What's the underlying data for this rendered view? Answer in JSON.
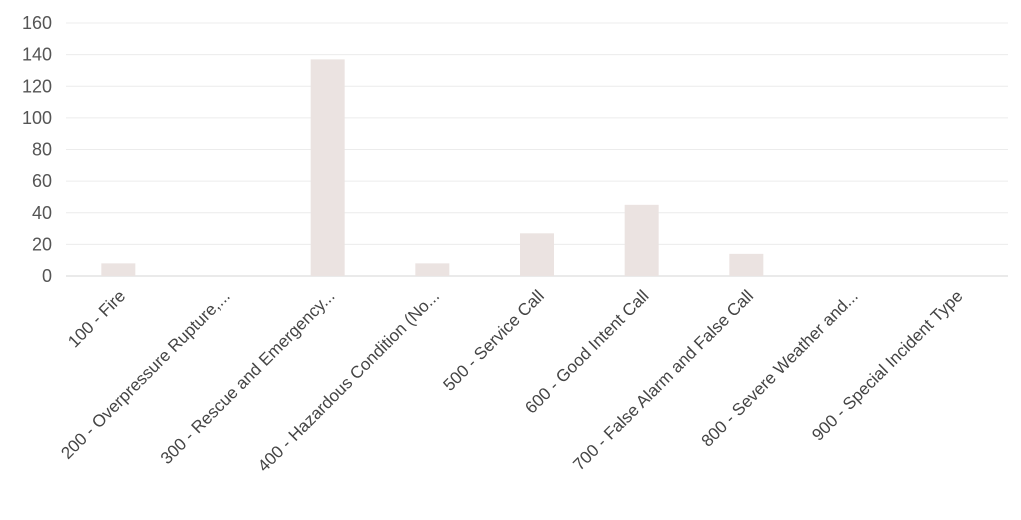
{
  "chart_data": {
    "type": "bar",
    "categories": [
      "100 - Fire",
      "200 - Overpressure Rupture,...",
      "300 - Rescue and Emergency...",
      "400 - Hazardous Condition (No...",
      "500 - Service Call",
      "600 - Good Intent Call",
      "700 - False Alarm and False Call",
      "800 - Severe Weather and...",
      "900 - Special Incident Type"
    ],
    "values": [
      8,
      0,
      137,
      8,
      27,
      45,
      14,
      0,
      0
    ],
    "yticks": [
      "0",
      "20",
      "40",
      "60",
      "80",
      "100",
      "120",
      "140",
      "160"
    ],
    "ylim": [
      0,
      160
    ],
    "grid": true,
    "bar_color": "#ebe3e1",
    "title": "",
    "xlabel": "",
    "ylabel": ""
  }
}
